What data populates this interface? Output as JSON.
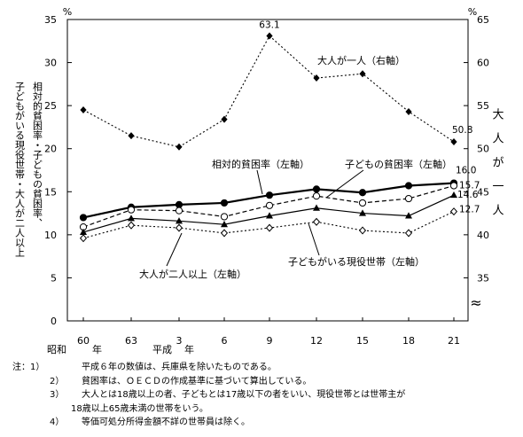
{
  "chart_data": {
    "type": "line",
    "categories": [
      "昭和60年",
      "63",
      "平成3年",
      "6",
      "9",
      "12",
      "15",
      "18",
      "21"
    ],
    "x_tick_labels": [
      "60",
      "63",
      "3",
      "6",
      "9",
      "12",
      "15",
      "18",
      "21"
    ],
    "era_labels": {
      "showa": "昭和",
      "heisei": "平成",
      "year": "年"
    },
    "left_axis": {
      "unit": "%",
      "ylim": [
        0,
        35
      ],
      "ticks": [
        0,
        5,
        10,
        15,
        20,
        25,
        30,
        35
      ]
    },
    "right_axis": {
      "unit": "%",
      "ylim": [
        30,
        65
      ],
      "ticks": [
        35,
        40,
        45,
        50,
        55,
        60,
        65
      ],
      "break_mark": "≈"
    },
    "left_axis_label": "相対的貧困率・子どもの貧困率、子どもがいる現役世帯・大人が二人以上",
    "right_axis_label": "大人が一人",
    "series": [
      {
        "name": "相対的貧困率（左軸）",
        "axis": "left",
        "marker": "filled-circle",
        "line": "solid-bold",
        "values": [
          12.0,
          13.2,
          13.5,
          13.7,
          14.6,
          15.3,
          14.9,
          15.7,
          16.0
        ],
        "end_label": "16.0"
      },
      {
        "name": "子どもの貧困率（左軸）",
        "axis": "left",
        "marker": "open-circle",
        "line": "dashed",
        "values": [
          10.9,
          12.9,
          12.8,
          12.1,
          13.4,
          14.5,
          13.7,
          14.2,
          15.7
        ],
        "end_label": "15.7"
      },
      {
        "name": "子どもがいる現役世帯（左軸）",
        "axis": "left",
        "marker": "filled-triangle",
        "line": "solid",
        "values": [
          10.3,
          11.9,
          11.6,
          11.2,
          12.2,
          13.1,
          12.5,
          12.2,
          14.6
        ],
        "end_label": "14.6"
      },
      {
        "name": "大人が二人以上（左軸）",
        "axis": "left",
        "marker": "open-diamond",
        "line": "dotted",
        "values": [
          9.6,
          11.1,
          10.8,
          10.2,
          10.8,
          11.5,
          10.5,
          10.2,
          12.7
        ],
        "end_label": "12.7"
      },
      {
        "name": "大人が一人（右軸）",
        "axis": "right",
        "marker": "filled-diamond",
        "line": "dotted",
        "values": [
          54.5,
          51.5,
          50.2,
          53.4,
          63.1,
          58.2,
          58.7,
          54.3,
          50.8
        ],
        "peak_label": "63.1",
        "end_label": "50.8"
      }
    ],
    "annotations": {
      "single_adult": "大人が一人（右軸）",
      "relative": "相対的貧困率（左軸）",
      "child": "子どもの貧困率（左軸）",
      "working": "子どもがいる現役世帯（左軸）",
      "two_adults": "大人が二人以上（左軸）"
    }
  },
  "notes": [
    {
      "num": "注：1）",
      "text": "平成６年の数値は、兵庫県を除いたものである。"
    },
    {
      "num": "2）",
      "text": "貧困率は、ＯＥＣＤの作成基準に基づいて算出している。"
    },
    {
      "num": "3）",
      "text": "大人とは18歳以上の者、子どもとは17歳以下の者をいい、現役世帯とは世帯主が"
    },
    {
      "num": "",
      "text": "18歳以上65歳未満の世帯をいう。"
    },
    {
      "num": "4）",
      "text": "等価可処分所得金額不詳の世帯員は除く。"
    }
  ]
}
